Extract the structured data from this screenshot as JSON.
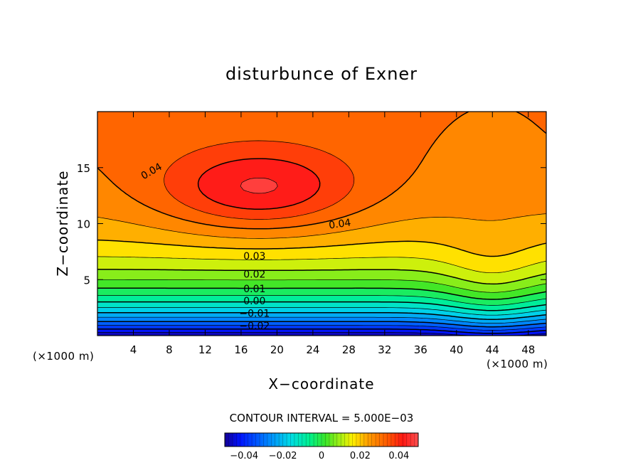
{
  "chart_data": {
    "type": "contour",
    "title": "disturbunce of Exner",
    "xlabel": "X−coordinate",
    "ylabel": "Z−coordinate",
    "x_unit": "(×1000 m)",
    "y_unit": "(×1000 m)",
    "xlim": [
      0,
      50
    ],
    "ylim": [
      0,
      20
    ],
    "x_ticks": [
      4,
      8,
      12,
      16,
      20,
      24,
      28,
      32,
      36,
      40,
      44,
      48
    ],
    "y_ticks": [
      5,
      10,
      15
    ],
    "x_tick_labels": [
      "4",
      "8",
      "12",
      "16",
      "20",
      "24",
      "28",
      "32",
      "36",
      "40",
      "44",
      "48"
    ],
    "y_tick_labels": [
      "5",
      "10",
      "15"
    ],
    "contour_interval_text": "CONTOUR INTERVAL = 5.000E−03",
    "contour_interval": 0.005,
    "value_range": [
      -0.05,
      0.05
    ],
    "negative_contours_dashed": true,
    "contour_labels": [
      {
        "text": "0.04",
        "x": 6,
        "z": 14.7
      },
      {
        "text": "0.04",
        "x": 27,
        "z": 10.0
      },
      {
        "text": "0.03",
        "x": 17.5,
        "z": 7.1
      },
      {
        "text": "0.02",
        "x": 17.5,
        "z": 5.5
      },
      {
        "text": "0.01",
        "x": 17.5,
        "z": 4.2
      },
      {
        "text": "0.00",
        "x": 17.5,
        "z": 3.1
      },
      {
        "text": "−0.01",
        "x": 17.5,
        "z": 2.0
      },
      {
        "text": "−0.02",
        "x": 17.5,
        "z": 0.9
      }
    ],
    "features": {
      "maximum": {
        "x": 18,
        "z": 13,
        "value": 0.05
      },
      "saddle": {
        "x": 44,
        "z": 16
      }
    },
    "colorbar": {
      "ticks": [
        -0.04,
        -0.02,
        0,
        0.02,
        0.04
      ],
      "tick_labels": [
        "−0.04",
        "−0.02",
        "0",
        "0.02",
        "0.04"
      ],
      "range": [
        -0.05,
        0.05
      ]
    }
  }
}
